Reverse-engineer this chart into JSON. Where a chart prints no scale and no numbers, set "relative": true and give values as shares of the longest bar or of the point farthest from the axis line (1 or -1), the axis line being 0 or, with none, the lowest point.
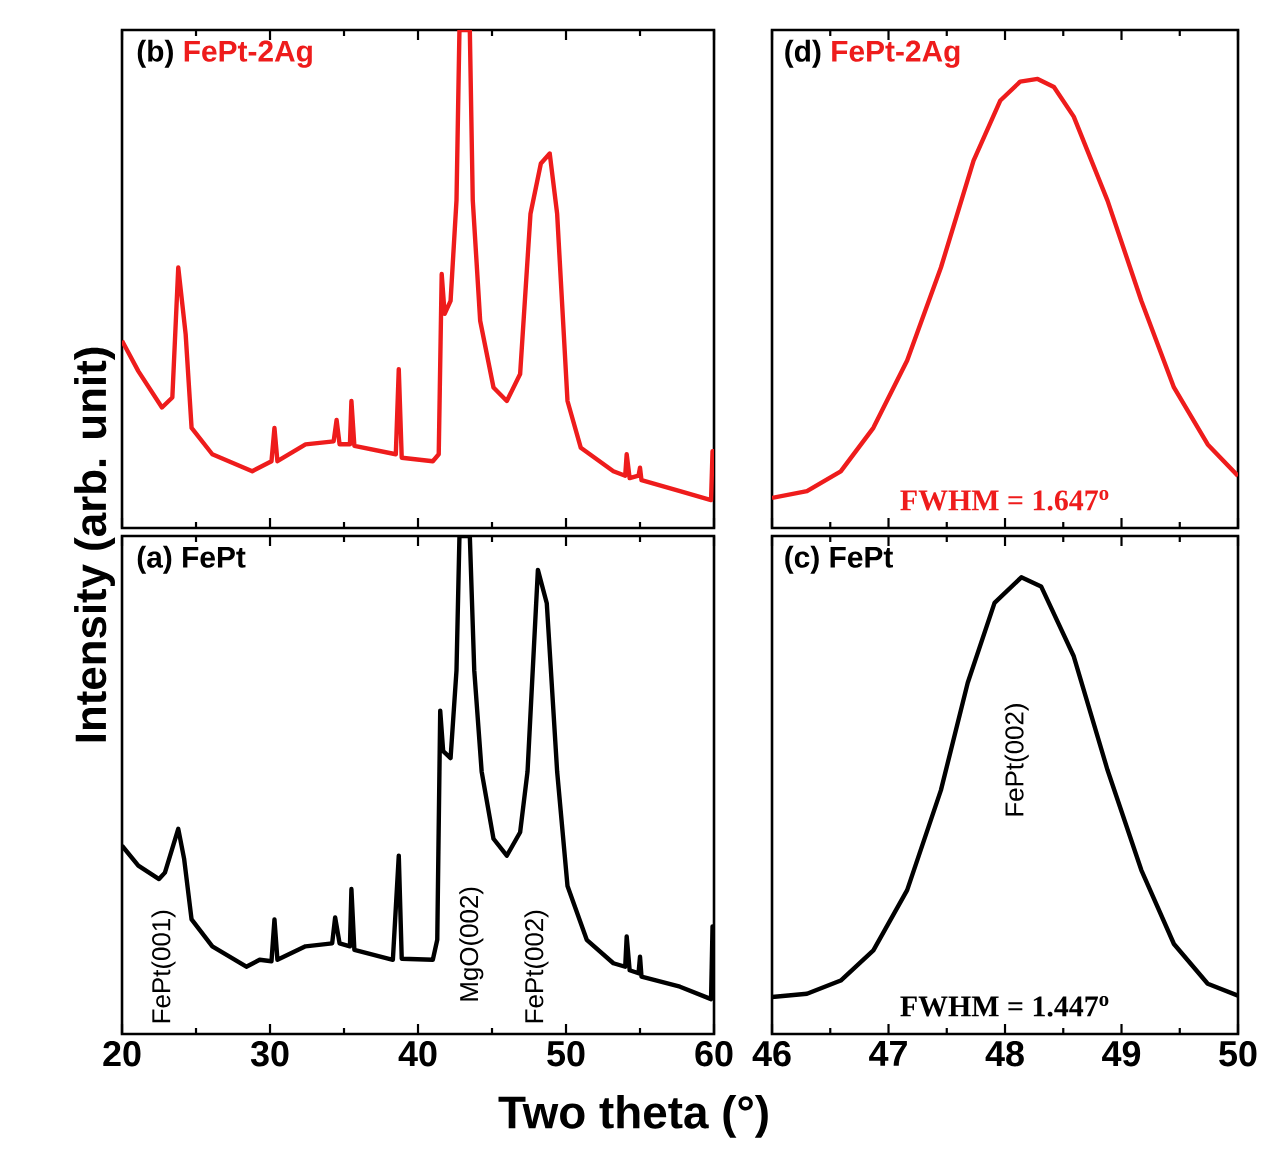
{
  "chart_data": [
    {
      "type": "line",
      "relative": true,
      "title": "(b)",
      "ylabel": "Intensity (arb. unit)",
      "xlim": [
        20,
        60
      ],
      "xticks": [
        20,
        30,
        40,
        50,
        60
      ],
      "tick_labels": false,
      "series": [
        {
          "name": "FePt-2Ag",
          "color": "#ee1c1c",
          "x": [
            20,
            21.1,
            22.7,
            23.4,
            23.8,
            24.3,
            24.7,
            26.1,
            28.8,
            30.1,
            30.3,
            30.5,
            32.4,
            34.3,
            34.5,
            34.7,
            35.4,
            35.5,
            35.7,
            38.5,
            38.7,
            38.9,
            41.0,
            41.4,
            41.6,
            41.8,
            42.2,
            42.6,
            42.8,
            43.5,
            43.7,
            44.2,
            45.1,
            46.0,
            46.9,
            47.6,
            48.3,
            48.9,
            49.4,
            50.1,
            51.0,
            53.2,
            54.0,
            54.1,
            54.3,
            54.9,
            55.0,
            55.1,
            57.7,
            59.8,
            59.9,
            60
          ],
          "values": [
            0.376,
            0.315,
            0.242,
            0.262,
            0.523,
            0.389,
            0.201,
            0.148,
            0.114,
            0.134,
            0.201,
            0.134,
            0.168,
            0.174,
            0.217,
            0.168,
            0.168,
            0.255,
            0.165,
            0.148,
            0.319,
            0.141,
            0.134,
            0.148,
            0.51,
            0.43,
            0.456,
            0.658,
            1.0,
            1.0,
            0.658,
            0.416,
            0.282,
            0.255,
            0.309,
            0.631,
            0.732,
            0.752,
            0.631,
            0.255,
            0.161,
            0.114,
            0.105,
            0.148,
            0.1,
            0.105,
            0.121,
            0.096,
            0.074,
            0.056,
            0.154,
            0.154
          ]
        }
      ]
    },
    {
      "type": "line",
      "relative": true,
      "title": "(d)",
      "xlim": [
        46,
        50
      ],
      "xticks": [
        46,
        47,
        48,
        49,
        50
      ],
      "tick_labels": false,
      "annotations": [
        "FWHM = 1.647$^{o}$"
      ],
      "series": [
        {
          "name": "FePt-2Ag",
          "color": "#ee1c1c",
          "x": [
            46,
            46.3,
            46.59,
            46.87,
            47.16,
            47.45,
            47.73,
            47.96,
            48.13,
            48.28,
            48.42,
            48.59,
            48.88,
            49.17,
            49.45,
            49.74,
            50
          ],
          "values": [
            0.067,
            0.082,
            0.126,
            0.223,
            0.373,
            0.58,
            0.818,
            0.952,
            0.994,
            1.0,
            0.982,
            0.916,
            0.729,
            0.506,
            0.313,
            0.186,
            0.116
          ]
        }
      ]
    },
    {
      "type": "line",
      "relative": true,
      "title": "(a)",
      "xlabel": "Two theta (°)",
      "xlim": [
        20,
        60
      ],
      "xticks": [
        20,
        30,
        40,
        50,
        60
      ],
      "tick_labels": "x",
      "annotations": [
        "FePt(001)",
        "MgO(002)",
        "FePt(002)"
      ],
      "series": [
        {
          "name": "FePt",
          "color": "#000000",
          "x": [
            20,
            21.1,
            22.5,
            22.9,
            23.8,
            24.2,
            24.7,
            26.1,
            28.4,
            29.3,
            30.1,
            30.3,
            30.5,
            32.4,
            34.2,
            34.4,
            34.7,
            35.4,
            35.5,
            35.7,
            38.3,
            38.7,
            38.9,
            41.0,
            41.3,
            41.5,
            41.7,
            42.2,
            42.6,
            42.8,
            43.5,
            43.8,
            44.3,
            45.1,
            46.0,
            46.9,
            47.4,
            48.1,
            48.7,
            49.4,
            50.1,
            51.4,
            53.2,
            54.0,
            54.1,
            54.3,
            54.9,
            55.0,
            55.1,
            57.7,
            59.8,
            59.9,
            60
          ],
          "values": [
            0.378,
            0.338,
            0.311,
            0.324,
            0.412,
            0.351,
            0.23,
            0.176,
            0.135,
            0.149,
            0.146,
            0.23,
            0.149,
            0.176,
            0.182,
            0.234,
            0.182,
            0.176,
            0.291,
            0.169,
            0.149,
            0.358,
            0.151,
            0.149,
            0.189,
            0.649,
            0.568,
            0.554,
            0.73,
            1.0,
            1.0,
            0.73,
            0.527,
            0.392,
            0.358,
            0.405,
            0.527,
            0.932,
            0.865,
            0.527,
            0.297,
            0.189,
            0.142,
            0.135,
            0.196,
            0.128,
            0.122,
            0.155,
            0.115,
            0.095,
            0.07,
            0.216,
            0.216
          ]
        }
      ]
    },
    {
      "type": "line",
      "relative": true,
      "title": "(c)",
      "xlim": [
        46,
        50
      ],
      "xticks": [
        46,
        47,
        48,
        49,
        50
      ],
      "tick_labels": "x",
      "annotations": [
        "FePt(002)",
        "FWHM = 1.447$^{o}$"
      ],
      "series": [
        {
          "name": "FePt",
          "color": "#000000",
          "x": [
            46,
            46.3,
            46.59,
            46.87,
            47.16,
            47.45,
            47.68,
            47.91,
            48.14,
            48.31,
            48.59,
            48.88,
            49.17,
            49.45,
            49.74,
            50
          ],
          "values": [
            0.081,
            0.088,
            0.117,
            0.183,
            0.315,
            0.534,
            0.769,
            0.944,
            1.0,
            0.98,
            0.827,
            0.578,
            0.359,
            0.197,
            0.11,
            0.084
          ]
        }
      ]
    }
  ]
}
